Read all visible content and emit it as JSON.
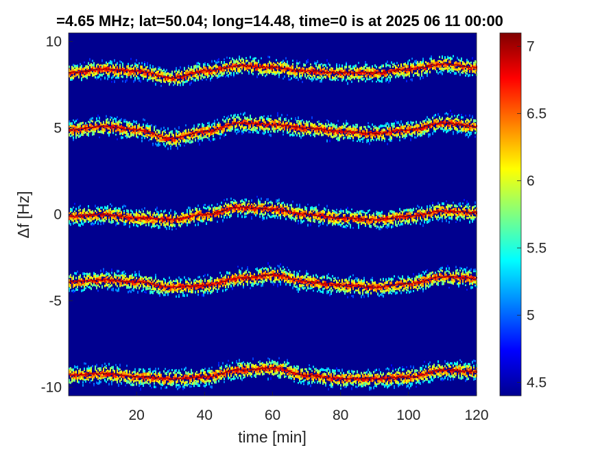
{
  "chart_data": {
    "type": "heatmap",
    "title": "=4.65 MHz;  lat=50.04; long=14.48, time=0 is at 2025 06 11 00:00",
    "xlabel": "time [min]",
    "ylabel": "Δf [Hz]",
    "xlim": [
      0,
      120
    ],
    "ylim": [
      -10.5,
      10.5
    ],
    "xticks": [
      20,
      40,
      60,
      80,
      100,
      120
    ],
    "yticks": [
      -10,
      -5,
      0,
      5,
      10
    ],
    "colorbar": {
      "colormap": "jet",
      "range": [
        4.4,
        7.1
      ],
      "ticks": [
        4.5,
        5,
        5.5,
        6,
        6.5,
        7
      ]
    },
    "background_value": 4.4,
    "traces": [
      {
        "name": "",
        "time": [
          0,
          10,
          20,
          30,
          40,
          50,
          60,
          70,
          80,
          90,
          100,
          110,
          120
        ],
        "df": [
          8.2,
          8.4,
          8.3,
          7.9,
          8.3,
          8.6,
          8.5,
          8.3,
          8.2,
          8.2,
          8.4,
          8.7,
          8.5
        ]
      },
      {
        "name": "",
        "time": [
          0,
          10,
          20,
          30,
          40,
          50,
          60,
          70,
          80,
          90,
          100,
          110,
          120
        ],
        "df": [
          4.9,
          5.1,
          4.9,
          4.4,
          4.8,
          5.3,
          5.2,
          5.0,
          4.8,
          4.7,
          4.9,
          5.3,
          5.1
        ]
      },
      {
        "name": "",
        "time": [
          0,
          10,
          20,
          30,
          40,
          50,
          60,
          70,
          80,
          90,
          100,
          110,
          120
        ],
        "df": [
          -0.1,
          0.0,
          -0.2,
          -0.3,
          0.0,
          0.4,
          0.3,
          0.0,
          -0.2,
          -0.3,
          -0.1,
          0.2,
          0.1
        ]
      },
      {
        "name": "",
        "time": [
          0,
          10,
          20,
          30,
          40,
          50,
          60,
          70,
          80,
          90,
          100,
          110,
          120
        ],
        "df": [
          -3.9,
          -3.8,
          -3.9,
          -4.2,
          -4.1,
          -3.7,
          -3.5,
          -3.9,
          -4.1,
          -4.2,
          -4.0,
          -3.6,
          -3.7
        ]
      },
      {
        "name": "",
        "time": [
          0,
          10,
          20,
          30,
          40,
          50,
          60,
          70,
          80,
          90,
          100,
          110,
          120
        ],
        "df": [
          -9.3,
          -9.2,
          -9.4,
          -9.5,
          -9.4,
          -9.0,
          -8.9,
          -9.3,
          -9.5,
          -9.5,
          -9.4,
          -9.0,
          -9.1
        ]
      }
    ]
  }
}
